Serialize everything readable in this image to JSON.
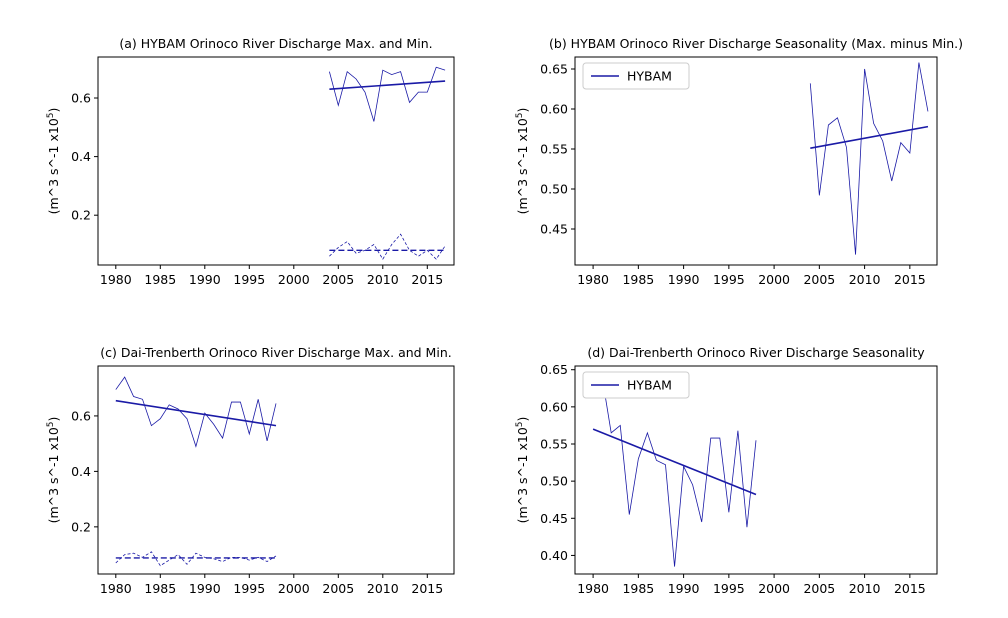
{
  "colors": {
    "series": "#1a1aa6",
    "axis": "#000000"
  },
  "chart_data": [
    {
      "type": "line",
      "title": "(a) HYBAM Orinoco River Discharge Max. and Min.",
      "ylabel_main": "(m^3 s^-1 x10",
      "ylabel_sup": "5",
      "ylabel_close": ")",
      "xlim": [
        1978,
        2018
      ],
      "ylim": [
        0.03,
        0.74
      ],
      "xticks": [
        1980,
        1985,
        1990,
        1995,
        2000,
        2005,
        2010,
        2015
      ],
      "yticks": [
        0.2,
        0.4,
        0.6
      ],
      "ytick_labels": [
        "0.2",
        "0.4",
        "0.6"
      ],
      "series": [
        {
          "style": "thin-solid",
          "x": [
            2004,
            2005,
            2006,
            2007,
            2008,
            2009,
            2010,
            2011,
            2012,
            2013,
            2014,
            2015,
            2016,
            2017
          ],
          "y": [
            0.69,
            0.575,
            0.69,
            0.665,
            0.62,
            0.52,
            0.695,
            0.68,
            0.69,
            0.585,
            0.62,
            0.62,
            0.705,
            0.695
          ]
        },
        {
          "style": "trend-solid",
          "x": [
            2004,
            2017
          ],
          "y": [
            0.63,
            0.658
          ]
        },
        {
          "style": "thin-dashed",
          "x": [
            2004,
            2005,
            2006,
            2007,
            2008,
            2009,
            2010,
            2011,
            2012,
            2013,
            2014,
            2015,
            2016,
            2017
          ],
          "y": [
            0.06,
            0.09,
            0.11,
            0.07,
            0.08,
            0.1,
            0.05,
            0.1,
            0.135,
            0.08,
            0.06,
            0.08,
            0.05,
            0.095
          ]
        },
        {
          "style": "trend-dashed",
          "x": [
            2004,
            2017
          ],
          "y": [
            0.08,
            0.08
          ]
        }
      ]
    },
    {
      "type": "line",
      "title": "(b) HYBAM Orinoco River Discharge Seasonality (Max. minus Min.)",
      "ylabel_main": "(m^3 s^-1 x10",
      "ylabel_sup": "5",
      "ylabel_close": ")",
      "xlim": [
        1978,
        2018
      ],
      "ylim": [
        0.405,
        0.665
      ],
      "xticks": [
        1980,
        1985,
        1990,
        1995,
        2000,
        2005,
        2010,
        2015
      ],
      "yticks": [
        0.45,
        0.5,
        0.55,
        0.6,
        0.65
      ],
      "ytick_labels": [
        "0.45",
        "0.50",
        "0.55",
        "0.60",
        "0.65"
      ],
      "legend": {
        "label": "HYBAM",
        "placement": "upper-left"
      },
      "series": [
        {
          "style": "thin-solid",
          "x": [
            2004,
            2005,
            2006,
            2007,
            2008,
            2009,
            2010,
            2011,
            2012,
            2013,
            2014,
            2015,
            2016,
            2017
          ],
          "y": [
            0.632,
            0.492,
            0.58,
            0.589,
            0.552,
            0.418,
            0.65,
            0.582,
            0.56,
            0.51,
            0.558,
            0.545,
            0.658,
            0.597
          ]
        },
        {
          "style": "trend-solid",
          "x": [
            2004,
            2017
          ],
          "y": [
            0.551,
            0.578
          ]
        }
      ]
    },
    {
      "type": "line",
      "title": "(c) Dai-Trenberth Orinoco River Discharge Max. and Min.",
      "ylabel_main": "(m^3 s^-1 x10",
      "ylabel_sup": "5",
      "ylabel_close": ")",
      "xlim": [
        1978,
        2018
      ],
      "ylim": [
        0.03,
        0.78
      ],
      "xticks": [
        1980,
        1985,
        1990,
        1995,
        2000,
        2005,
        2010,
        2015
      ],
      "yticks": [
        0.2,
        0.4,
        0.6
      ],
      "ytick_labels": [
        "0.2",
        "0.4",
        "0.6"
      ],
      "series": [
        {
          "style": "thin-solid",
          "x": [
            1980,
            1981,
            1982,
            1983,
            1984,
            1985,
            1986,
            1987,
            1988,
            1989,
            1990,
            1991,
            1992,
            1993,
            1994,
            1995,
            1996,
            1997,
            1998
          ],
          "y": [
            0.695,
            0.74,
            0.67,
            0.66,
            0.565,
            0.59,
            0.64,
            0.625,
            0.59,
            0.49,
            0.61,
            0.57,
            0.52,
            0.65,
            0.65,
            0.535,
            0.66,
            0.51,
            0.645
          ]
        },
        {
          "style": "trend-solid",
          "x": [
            1980,
            1998
          ],
          "y": [
            0.655,
            0.565
          ]
        },
        {
          "style": "thin-dashed",
          "x": [
            1980,
            1981,
            1982,
            1983,
            1984,
            1985,
            1986,
            1987,
            1988,
            1989,
            1990,
            1991,
            1992,
            1993,
            1994,
            1995,
            1996,
            1997,
            1998
          ],
          "y": [
            0.07,
            0.1,
            0.105,
            0.09,
            0.11,
            0.06,
            0.08,
            0.1,
            0.065,
            0.105,
            0.09,
            0.085,
            0.075,
            0.09,
            0.09,
            0.08,
            0.09,
            0.075,
            0.095
          ]
        },
        {
          "style": "trend-dashed",
          "x": [
            1980,
            1998
          ],
          "y": [
            0.088,
            0.088
          ]
        }
      ]
    },
    {
      "type": "line",
      "title": "(d) Dai-Trenberth Orinoco River Discharge Seasonality",
      "ylabel_main": "(m^3 s^-1 x10",
      "ylabel_sup": "5",
      "ylabel_close": ")",
      "xlim": [
        1978,
        2018
      ],
      "ylim": [
        0.375,
        0.655
      ],
      "xticks": [
        1980,
        1985,
        1990,
        1995,
        2000,
        2005,
        2010,
        2015
      ],
      "yticks": [
        0.4,
        0.45,
        0.5,
        0.55,
        0.6,
        0.65
      ],
      "ytick_labels": [
        "0.40",
        "0.45",
        "0.50",
        "0.55",
        "0.60",
        "0.65"
      ],
      "legend": {
        "label": "HYBAM",
        "placement": "upper-left"
      },
      "series": [
        {
          "style": "thin-solid",
          "x": [
            1980,
            1981,
            1982,
            1983,
            1984,
            1985,
            1986,
            1987,
            1988,
            1989,
            1990,
            1991,
            1992,
            1993,
            1994,
            1995,
            1996,
            1997,
            1998
          ],
          "y": [
            0.625,
            0.64,
            0.565,
            0.575,
            0.455,
            0.53,
            0.565,
            0.528,
            0.522,
            0.385,
            0.52,
            0.495,
            0.445,
            0.558,
            0.558,
            0.458,
            0.568,
            0.438,
            0.555
          ]
        },
        {
          "style": "trend-solid",
          "x": [
            1980,
            1998
          ],
          "y": [
            0.57,
            0.482
          ]
        }
      ]
    }
  ]
}
